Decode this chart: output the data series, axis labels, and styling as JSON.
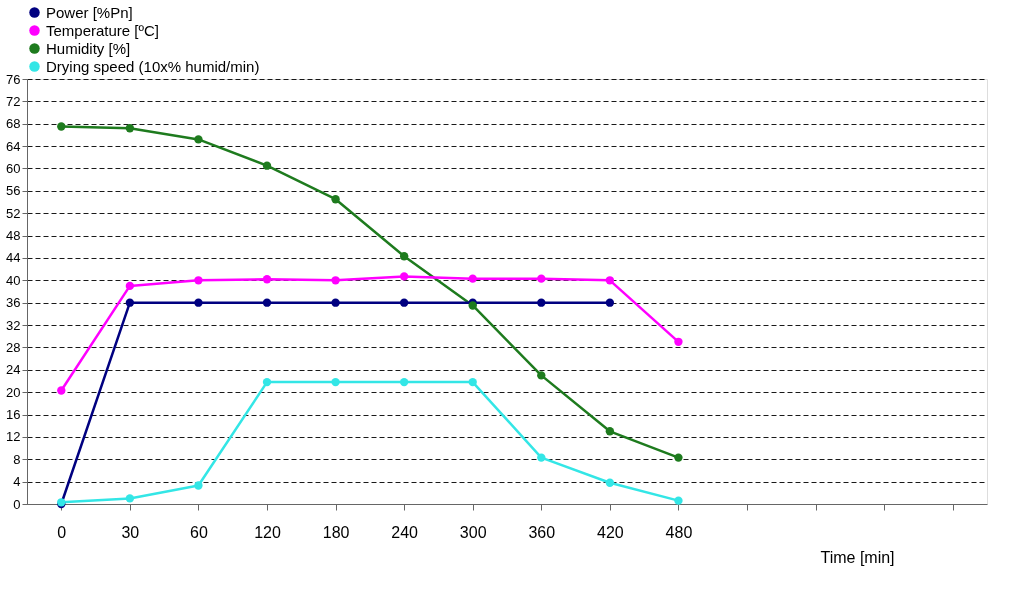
{
  "chart_data": {
    "type": "line",
    "xlabel": "Time [min]",
    "categories": [
      "0",
      "30",
      "60",
      "120",
      "180",
      "240",
      "300",
      "360",
      "420",
      "480",
      null,
      null,
      null,
      null
    ],
    "series": [
      {
        "name": "Power  [%Pn]",
        "color": "#000080",
        "values": [
          0,
          36,
          36,
          36,
          36,
          36,
          36,
          36,
          36,
          null,
          null,
          null,
          null,
          null
        ]
      },
      {
        "name": "Temperature [ºC]",
        "color": "#ff00ff",
        "values": [
          20.3,
          39,
          40,
          40.2,
          40,
          40.7,
          40.3,
          40.3,
          40,
          29,
          null,
          null,
          null,
          null
        ]
      },
      {
        "name": "Humidity  [%]",
        "color": "#1e7b1e",
        "values": [
          67.5,
          67.2,
          65.2,
          60.5,
          54.5,
          44.3,
          35.5,
          23,
          13,
          8.3,
          null,
          null,
          null,
          null
        ]
      },
      {
        "name": "Drying speed (10x% humid/min)",
        "color": "#33e6e6",
        "values": [
          0.3,
          1,
          3.3,
          21.8,
          21.8,
          21.8,
          21.8,
          8.3,
          3.8,
          0.6,
          null,
          null,
          null,
          null
        ]
      }
    ],
    "ylim": [
      0,
      76
    ],
    "yticks": [
      0,
      4,
      8,
      12,
      16,
      20,
      24,
      28,
      32,
      36,
      40,
      44,
      48,
      52,
      56,
      60,
      64,
      68,
      72,
      76
    ],
    "grid": "y",
    "legend": "top",
    "marker": "circle",
    "line_style": "solid"
  }
}
